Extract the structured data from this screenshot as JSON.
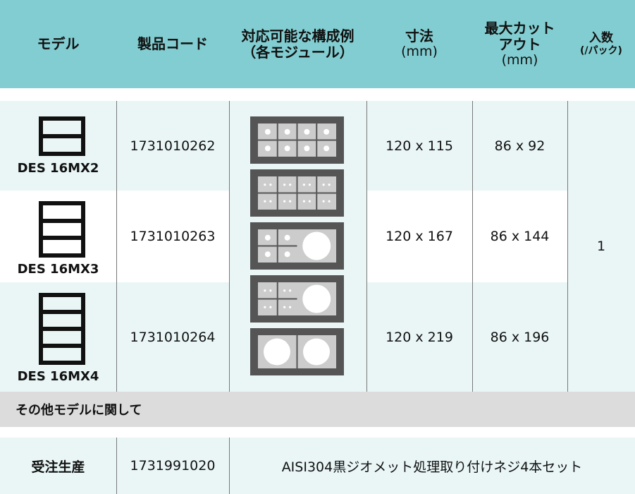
{
  "header": {
    "columns": [
      {
        "title": "モデル"
      },
      {
        "title": "製品コード"
      },
      {
        "title": "対応可能な構成例（各モジュール）"
      },
      {
        "title": "寸法",
        "unit": "(mm)"
      },
      {
        "title": "最大カットアウト",
        "unit": "(mm)"
      },
      {
        "title": "入数",
        "unit": "(/パック)"
      }
    ]
  },
  "rows": [
    {
      "model": "DES 16MX2",
      "code": "1731010262",
      "size": "120 x 115",
      "cutout": "86 x 92"
    },
    {
      "model": "DES 16MX3",
      "code": "1731010263",
      "size": "120 x 167",
      "cutout": "86 x 144"
    },
    {
      "model": "DES 16MX4",
      "code": "1731010264",
      "size": "120 x 219",
      "cutout": "86 x 196"
    }
  ],
  "quantity": "1",
  "section": {
    "title": "その他モデルに関して"
  },
  "extra_row": {
    "name": "受注生産",
    "code": "1731991020",
    "description": "AISI304黒ジオメット処理取り付けネジ4本セット"
  }
}
